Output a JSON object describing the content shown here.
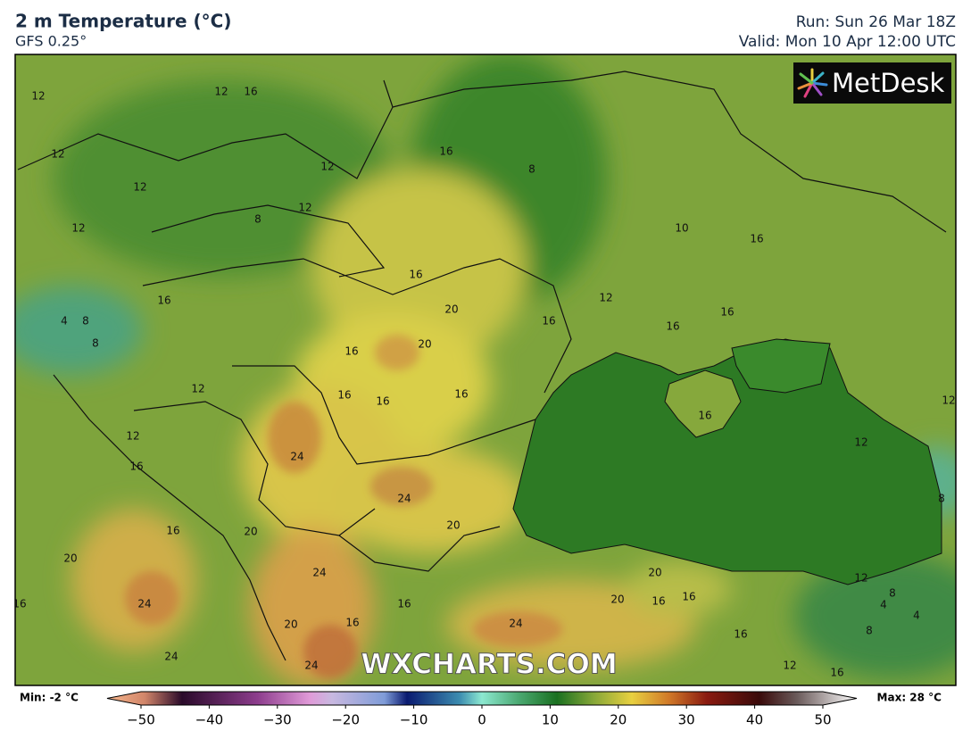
{
  "header": {
    "title": "2 m Temperature (°C)",
    "subtitle": "GFS 0.25°",
    "run": "Run: Sun 26 Mar 18Z",
    "valid": "Valid: Mon 10 Apr 12:00 UTC"
  },
  "logo": "MetDesk",
  "watermark": "WXCHARTS.COM",
  "map": {
    "contour_labels": [
      "12",
      "12",
      "16",
      "12",
      "12",
      "12",
      "16",
      "8",
      "8",
      "12",
      "12",
      "10",
      "16",
      "16",
      "12",
      "16",
      "4",
      "8",
      "20",
      "16",
      "16",
      "16",
      "8",
      "20",
      "16",
      "12",
      "16",
      "16",
      "16",
      "16",
      "12",
      "12",
      "16",
      "24",
      "24",
      "20",
      "16",
      "20",
      "20",
      "24",
      "20",
      "16",
      "24",
      "20",
      "16",
      "16",
      "16",
      "16",
      "24",
      "20",
      "16",
      "24",
      "24",
      "12",
      "16",
      "8",
      "4",
      "4",
      "12",
      "8",
      "12",
      "8"
    ]
  },
  "colorbar": {
    "min": "Min: -2 °C",
    "max": "Max: 28 °C",
    "lim": [
      -50,
      50
    ],
    "ticks": [
      {
        "value": -50,
        "label": "−50"
      },
      {
        "value": -40,
        "label": "−40"
      },
      {
        "value": -30,
        "label": "−30"
      },
      {
        "value": -20,
        "label": "−20"
      },
      {
        "value": -10,
        "label": "−10"
      },
      0,
      10,
      20,
      30,
      40,
      50
    ]
  }
}
